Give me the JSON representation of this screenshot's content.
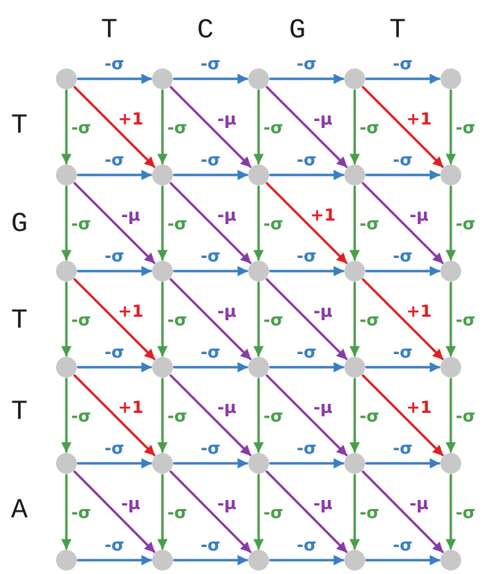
{
  "sequences": {
    "top": [
      "T",
      "C",
      "G",
      "T"
    ],
    "left": [
      "T",
      "G",
      "T",
      "T",
      "A"
    ]
  },
  "labels": {
    "right": "-σ",
    "down": "-σ",
    "match": "+1",
    "mismatch": "-μ"
  },
  "colors": {
    "right": "#3b7dc6",
    "down": "#4a9e48",
    "match": "#e02020",
    "mismatch": "#8a3aa8",
    "node": "#c8c8c8"
  },
  "grid": {
    "rows": 6,
    "cols": 5
  },
  "diagonals": [
    [
      "match",
      "mismatch",
      "mismatch",
      "match"
    ],
    [
      "mismatch",
      "mismatch",
      "match",
      "mismatch"
    ],
    [
      "match",
      "mismatch",
      "mismatch",
      "match"
    ],
    [
      "match",
      "mismatch",
      "mismatch",
      "match"
    ],
    [
      "mismatch",
      "mismatch",
      "mismatch",
      "mismatch"
    ]
  ]
}
